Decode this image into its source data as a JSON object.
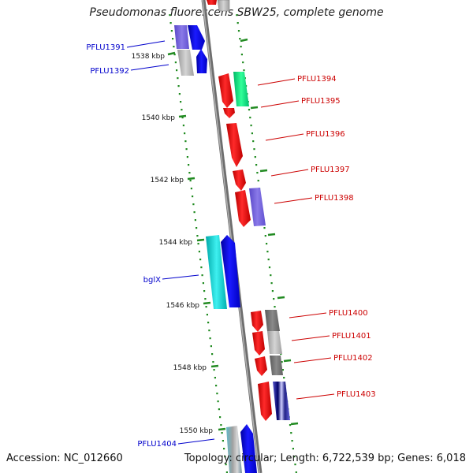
{
  "title": "Pseudomonas fluorescens SBW25, complete genome",
  "accession": "Accession: NC_012660",
  "summary": "Topology: circular; Length: 6,722,539 bp; Genes: 6,018",
  "colors": {
    "backbone": "#808080",
    "ticks": "#228b22",
    "left_labels": "#0000cc",
    "right_labels": "#cc0000"
  },
  "scale_labels": [
    "1538 kbp",
    "1540 kbp",
    "1542 kbp",
    "1544 kbp",
    "1546 kbp",
    "1548 kbp",
    "1550 kbp"
  ],
  "left_genes": [
    "PFLU1391",
    "PFLU1392",
    "bglX",
    "PFLU1404"
  ],
  "right_genes": [
    "PFLU1394",
    "PFLU1395",
    "PFLU1396",
    "PFLU1397",
    "PFLU1398",
    "PFLU1400",
    "PFLU1401",
    "PFLU1402",
    "PFLU1403"
  ]
}
